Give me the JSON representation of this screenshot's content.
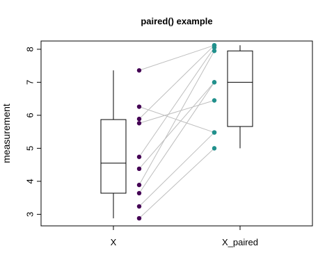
{
  "chart_data": {
    "type": "box",
    "title": "paired() example",
    "xlabel": "",
    "ylabel": "measurement",
    "categories": [
      "X",
      "X_paired"
    ],
    "ylim": [
      2.65,
      8.25
    ],
    "yticks": [
      3,
      4,
      5,
      6,
      7,
      8
    ],
    "grid": false,
    "boxes": [
      {
        "name": "X",
        "whisker_low": 2.88,
        "q1": 3.64,
        "median": 4.55,
        "q3": 5.87,
        "whisker_high": 7.36
      },
      {
        "name": "X_paired",
        "whisker_low": 5.0,
        "q1": 5.66,
        "median": 7.0,
        "q3": 7.95,
        "whisker_high": 8.12
      }
    ],
    "pairs": [
      [
        7.36,
        8.12
      ],
      [
        6.26,
        5.48
      ],
      [
        5.89,
        8.12
      ],
      [
        5.76,
        6.45
      ],
      [
        4.74,
        8.05
      ],
      [
        4.38,
        7.0
      ],
      [
        3.89,
        7.95
      ],
      [
        3.64,
        7.0
      ],
      [
        3.24,
        5.48
      ],
      [
        2.88,
        5.0
      ]
    ],
    "colors": {
      "x_points": "#440154",
      "paired_points": "#21908c",
      "pair_lines": "#bebebe",
      "box_stroke": "#000000"
    }
  }
}
